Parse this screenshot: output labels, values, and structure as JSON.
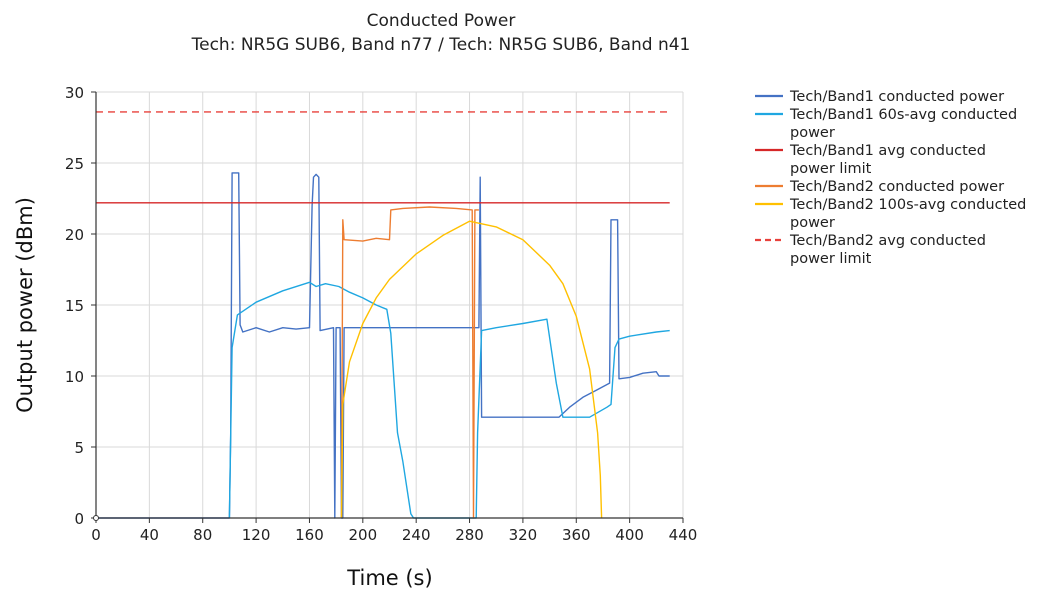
{
  "chart_data": {
    "type": "line",
    "title": "Conducted Power",
    "subtitle": "Tech: NR5G SUB6, Band n77 / Tech: NR5G SUB6, Band n41",
    "xlabel": "Time (s)",
    "ylabel": "Output power (dBm)",
    "xlim": [
      0,
      440
    ],
    "ylim": [
      0,
      30
    ],
    "xticks": [
      "0",
      "40",
      "80",
      "120",
      "160",
      "200",
      "240",
      "280",
      "320",
      "360",
      "400",
      "440"
    ],
    "yticks": [
      "0",
      "5",
      "10",
      "15",
      "20",
      "25",
      "30"
    ],
    "grid": true,
    "legend_position": "right",
    "series": [
      {
        "name": "Tech/Band1 conducted power",
        "legend_lines": [
          "Tech/Band1 conducted power"
        ],
        "color": "#4472c4",
        "dash": "solid",
        "points": [
          [
            0,
            0
          ],
          [
            100,
            0
          ],
          [
            101,
            6
          ],
          [
            102,
            24.3
          ],
          [
            107,
            24.3
          ],
          [
            108,
            13.6
          ],
          [
            110,
            13.1
          ],
          [
            120,
            13.4
          ],
          [
            130,
            13.1
          ],
          [
            140,
            13.4
          ],
          [
            150,
            13.3
          ],
          [
            160,
            13.4
          ],
          [
            162,
            22
          ],
          [
            163,
            24
          ],
          [
            165,
            24.2
          ],
          [
            167,
            24
          ],
          [
            168,
            13.2
          ],
          [
            178,
            13.4
          ],
          [
            179,
            0
          ],
          [
            180,
            13.4
          ],
          [
            183,
            13.4
          ],
          [
            184,
            0
          ],
          [
            185,
            0
          ],
          [
            186,
            13.4
          ],
          [
            287,
            13.4
          ],
          [
            288,
            24
          ],
          [
            289,
            7.1
          ],
          [
            340,
            7.1
          ],
          [
            347,
            7.1
          ],
          [
            355,
            7.8
          ],
          [
            365,
            8.5
          ],
          [
            375,
            9
          ],
          [
            385,
            9.5
          ],
          [
            386,
            21
          ],
          [
            391,
            21
          ],
          [
            392,
            9.8
          ],
          [
            400,
            9.9
          ],
          [
            410,
            10.2
          ],
          [
            420,
            10.3
          ],
          [
            422,
            10
          ],
          [
            430,
            10
          ]
        ]
      },
      {
        "name": "Tech/Band1 60s-avg conducted power",
        "legend_lines": [
          "Tech/Band1 60s-avg conducted",
          "power"
        ],
        "color": "#1fa7e1",
        "dash": "solid",
        "points": [
          [
            100,
            0
          ],
          [
            102,
            12
          ],
          [
            106,
            14.3
          ],
          [
            120,
            15.2
          ],
          [
            140,
            16
          ],
          [
            160,
            16.6
          ],
          [
            165,
            16.3
          ],
          [
            172,
            16.5
          ],
          [
            182,
            16.3
          ],
          [
            190,
            15.9
          ],
          [
            200,
            15.5
          ],
          [
            210,
            15
          ],
          [
            218,
            14.7
          ],
          [
            221,
            13
          ],
          [
            226,
            6
          ],
          [
            230,
            4
          ],
          [
            236,
            0.3
          ],
          [
            238,
            0
          ],
          [
            285,
            0
          ],
          [
            286,
            6
          ],
          [
            289,
            13.2
          ],
          [
            300,
            13.4
          ],
          [
            320,
            13.7
          ],
          [
            338,
            14
          ],
          [
            345,
            9.5
          ],
          [
            350,
            7.1
          ],
          [
            355,
            7.1
          ],
          [
            370,
            7.1
          ],
          [
            383,
            7.8
          ],
          [
            386,
            8
          ],
          [
            389,
            12
          ],
          [
            392,
            12.6
          ],
          [
            400,
            12.8
          ],
          [
            420,
            13.1
          ],
          [
            430,
            13.2
          ]
        ]
      },
      {
        "name": "Tech/Band1 avg conducted power limit",
        "legend_lines": [
          "Tech/Band1 avg conducted",
          "power limit"
        ],
        "color": "#d62728",
        "dash": "solid",
        "points": [
          [
            0,
            22.2
          ],
          [
            430,
            22.2
          ]
        ]
      },
      {
        "name": "Tech/Band2 conducted power",
        "legend_lines": [
          "Tech/Band2 conducted power"
        ],
        "color": "#ed7d31",
        "dash": "solid",
        "points": [
          [
            184,
            0
          ],
          [
            185,
            21
          ],
          [
            186,
            19.6
          ],
          [
            200,
            19.5
          ],
          [
            210,
            19.7
          ],
          [
            220,
            19.6
          ],
          [
            221,
            21.7
          ],
          [
            230,
            21.8
          ],
          [
            250,
            21.9
          ],
          [
            270,
            21.8
          ],
          [
            282,
            21.7
          ],
          [
            283,
            0
          ],
          [
            284,
            21.7
          ],
          [
            287,
            21.7
          ]
        ]
      },
      {
        "name": "Tech/Band2 100s-avg conducted power",
        "legend_lines": [
          "Tech/Band2 100s-avg conducted",
          "power"
        ],
        "color": "#ffc000",
        "dash": "solid",
        "points": [
          [
            184,
            0
          ],
          [
            185,
            8
          ],
          [
            190,
            11
          ],
          [
            200,
            13.7
          ],
          [
            210,
            15.5
          ],
          [
            220,
            16.8
          ],
          [
            240,
            18.6
          ],
          [
            260,
            19.9
          ],
          [
            280,
            20.9
          ],
          [
            300,
            20.5
          ],
          [
            320,
            19.6
          ],
          [
            340,
            17.8
          ],
          [
            350,
            16.5
          ],
          [
            360,
            14.2
          ],
          [
            370,
            10.5
          ],
          [
            376,
            6
          ],
          [
            378,
            3
          ],
          [
            379,
            0
          ]
        ]
      },
      {
        "name": "Tech/Band2 avg conducted power limit",
        "legend_lines": [
          "Tech/Band2 avg conducted",
          "power limit"
        ],
        "color": "#e8413b",
        "dash": "dashed",
        "points": [
          [
            0,
            28.6
          ],
          [
            430,
            28.6
          ]
        ]
      }
    ]
  }
}
